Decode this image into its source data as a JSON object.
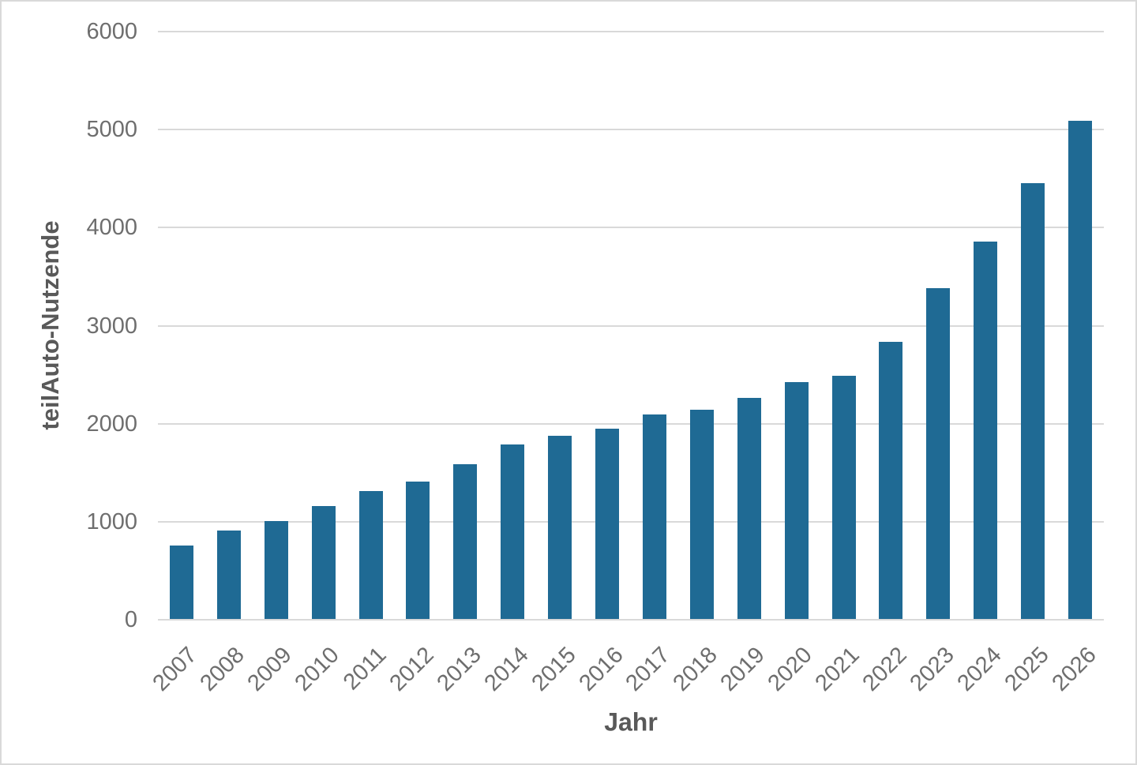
{
  "chart_data": {
    "type": "bar",
    "title": "",
    "xlabel": "Jahr",
    "ylabel": "teilAuto-Nutzende",
    "categories": [
      "2007",
      "2008",
      "2009",
      "2010",
      "2011",
      "2012",
      "2013",
      "2014",
      "2015",
      "2016",
      "2017",
      "2018",
      "2019",
      "2020",
      "2021",
      "2022",
      "2023",
      "2024",
      "2025",
      "2026"
    ],
    "values": [
      760,
      910,
      1010,
      1160,
      1315,
      1410,
      1590,
      1785,
      1880,
      1950,
      2095,
      2145,
      2265,
      2425,
      2485,
      2835,
      3385,
      3860,
      4450,
      5090
    ],
    "ylim": [
      0,
      6000
    ],
    "yticks": [
      0,
      1000,
      2000,
      3000,
      4000,
      5000,
      6000
    ],
    "ytick_labels": [
      "0",
      "1000",
      "2000",
      "3000",
      "4000",
      "5000",
      "6000"
    ],
    "grid": true,
    "legend": false,
    "legend_position": "none",
    "bar_color": "#1F6A94",
    "tick_text_color": "#6E6E6E",
    "axis_title_color": "#595959",
    "gridline_color": "#D9D9D9"
  }
}
